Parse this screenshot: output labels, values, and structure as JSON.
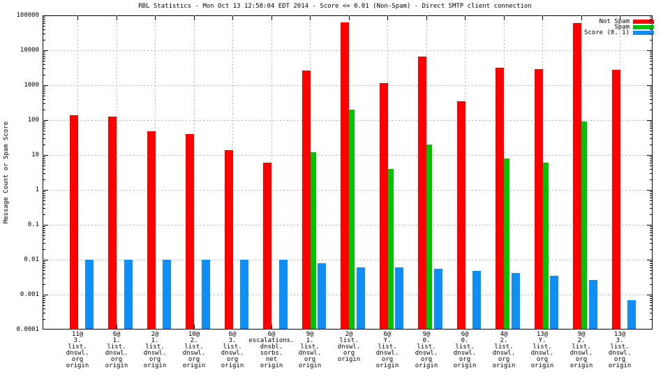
{
  "chart_data": {
    "type": "bar",
    "title": "RBL Statistics - Mon Oct 13 12:58:04 EDT 2014 - Score <= 0.01 (Non-Spam) - Direct SMTP client connection",
    "ylabel": "Message Count or Spam Score",
    "yscale": "log",
    "ylim": [
      0.0001,
      100000
    ],
    "ytick_labels": [
      "100000",
      "10000",
      "1000",
      "100",
      "10",
      "1",
      "0.1",
      "0.01",
      "0.001",
      "0.0001"
    ],
    "grid": true,
    "legend_position": "top-right",
    "colors": {
      "not_spam": "#ff0000",
      "spam": "#00c300",
      "score": "#0f8ef5",
      "grid": "#b4b4b4"
    },
    "categories": [
      [
        "11@",
        "3.",
        "list.",
        "dnswl.",
        "org",
        "origin"
      ],
      [
        "6@",
        "1.",
        "list.",
        "dnswl.",
        "org",
        "origin"
      ],
      [
        "2@",
        "1.",
        "list.",
        "dnswl.",
        "org",
        "origin"
      ],
      [
        "10@",
        "2.",
        "list.",
        "dnswl.",
        "org",
        "origin"
      ],
      [
        "6@",
        "3.",
        "list.",
        "dnswl.",
        "org",
        "origin"
      ],
      [
        "6@",
        "escalations.",
        "dnsbl.",
        "sorbs.",
        "net",
        "origin"
      ],
      [
        "9@",
        "1.",
        "list.",
        "dnswl.",
        "org",
        "origin"
      ],
      [
        "2@",
        "list.",
        "dnswl.",
        "org",
        "origin"
      ],
      [
        "6@",
        "Y.",
        "list.",
        "dnswl.",
        "org",
        "origin"
      ],
      [
        "9@",
        "0.",
        "list.",
        "dnswl.",
        "org",
        "origin"
      ],
      [
        "6@",
        "0.",
        "list.",
        "dnswl.",
        "org",
        "origin"
      ],
      [
        "4@",
        "2.",
        "list.",
        "dnswl.",
        "org",
        "origin"
      ],
      [
        "13@",
        "Y.",
        "list.",
        "dnswl.",
        "org",
        "origin"
      ],
      [
        "9@",
        "2.",
        "list.",
        "dnswl.",
        "org",
        "origin"
      ],
      [
        "13@",
        "3.",
        "list.",
        "dnswl.",
        "org",
        "origin"
      ]
    ],
    "series": [
      {
        "name": "Not Spam",
        "color": "#ff0000",
        "values": [
          140,
          125,
          48,
          40,
          14,
          6,
          2600,
          63000,
          1150,
          6500,
          350,
          3200,
          2900,
          60000,
          2700
        ]
      },
      {
        "name": "Spam",
        "color": "#00c300",
        "values": [
          null,
          null,
          null,
          null,
          null,
          null,
          12,
          200,
          4,
          20,
          null,
          8,
          6,
          90,
          null
        ]
      },
      {
        "name": "Score (0..1)",
        "color": "#0f8ef5",
        "values": [
          0.01,
          0.01,
          0.01,
          0.01,
          0.01,
          0.01,
          0.008,
          0.006,
          0.006,
          0.0055,
          0.0047,
          0.0042,
          0.0035,
          0.0026,
          0.0007
        ]
      }
    ]
  }
}
